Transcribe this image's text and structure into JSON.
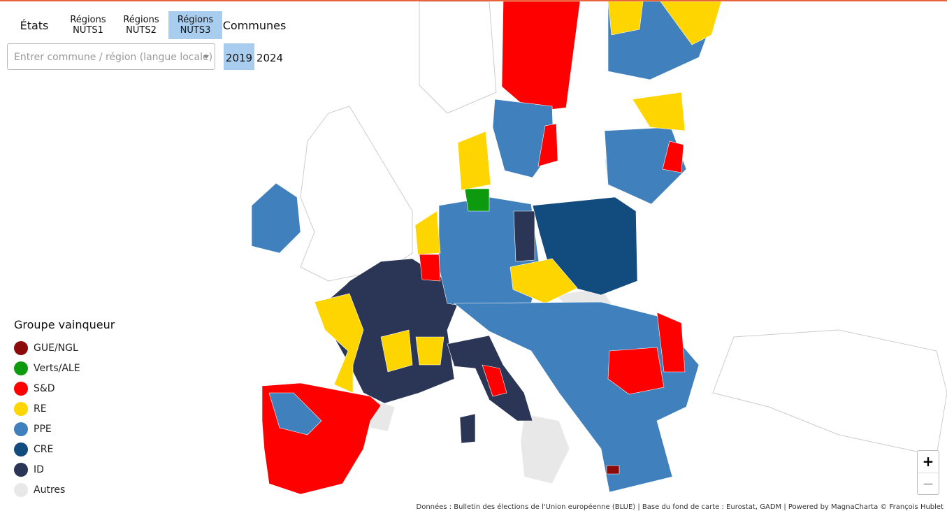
{
  "tabs": [
    {
      "line1": "États"
    },
    {
      "line1": "Régions",
      "line2": "NUTS1"
    },
    {
      "line1": "Régions",
      "line2": "NUTS2"
    },
    {
      "line1": "Régions",
      "line2": "NUTS3",
      "active": true
    },
    {
      "line1": "Communes"
    }
  ],
  "search": {
    "placeholder": "Entrer commune / région (langue locale)"
  },
  "years": [
    {
      "label": "2019",
      "active": true
    },
    {
      "label": "2024"
    }
  ],
  "legend": {
    "title": "Groupe vainqueur",
    "items": [
      {
        "name": "GUE/NGL",
        "color": "#8b0b0b"
      },
      {
        "name": "Verts/ALE",
        "color": "#0e9a0e"
      },
      {
        "name": "S&D",
        "color": "#ff0000"
      },
      {
        "name": "RE",
        "color": "#ffd500"
      },
      {
        "name": "PPE",
        "color": "#4080bd"
      },
      {
        "name": "CRE",
        "color": "#124b7d"
      },
      {
        "name": "ID",
        "color": "#2b3555"
      },
      {
        "name": "Autres",
        "color": "#e8e8e8"
      }
    ]
  },
  "zoom": {
    "in": "+",
    "out": "−"
  },
  "attribution": "Données : Bulletin des élections de l'Union européenne (BLUE) | Base du fond de carte : Eurostat, GADM | Powered by MagnaCharta © François Hublet"
}
